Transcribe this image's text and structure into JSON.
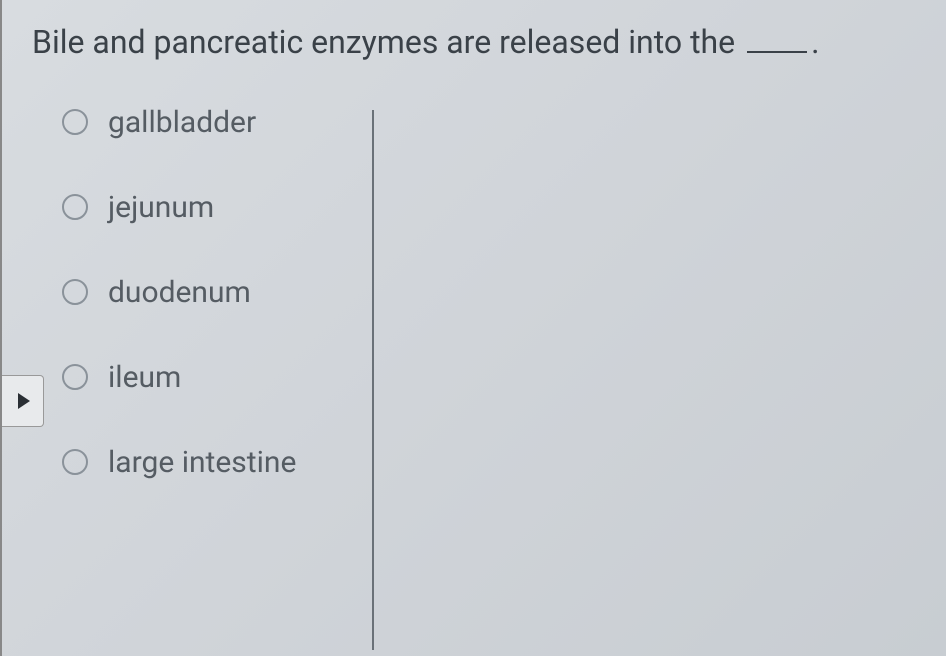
{
  "question": {
    "text_before_blank": "Bile and pancreatic enzymes are released into the ",
    "text_after_blank": "."
  },
  "options": [
    {
      "label": "gallbladder",
      "selected": false
    },
    {
      "label": "jejunum",
      "selected": false
    },
    {
      "label": "duodenum",
      "selected": false
    },
    {
      "label": "ileum",
      "selected": false
    },
    {
      "label": "large intestine",
      "selected": false
    }
  ],
  "styling": {
    "background_gradient": [
      "#d8dce0",
      "#d0d4d9",
      "#c8cdd2"
    ],
    "question_color": "#3a4148",
    "option_color": "#555c63",
    "radio_border_color": "#8a929a",
    "divider_color": "#6a7178",
    "question_fontsize": 32,
    "option_fontsize": 30
  }
}
